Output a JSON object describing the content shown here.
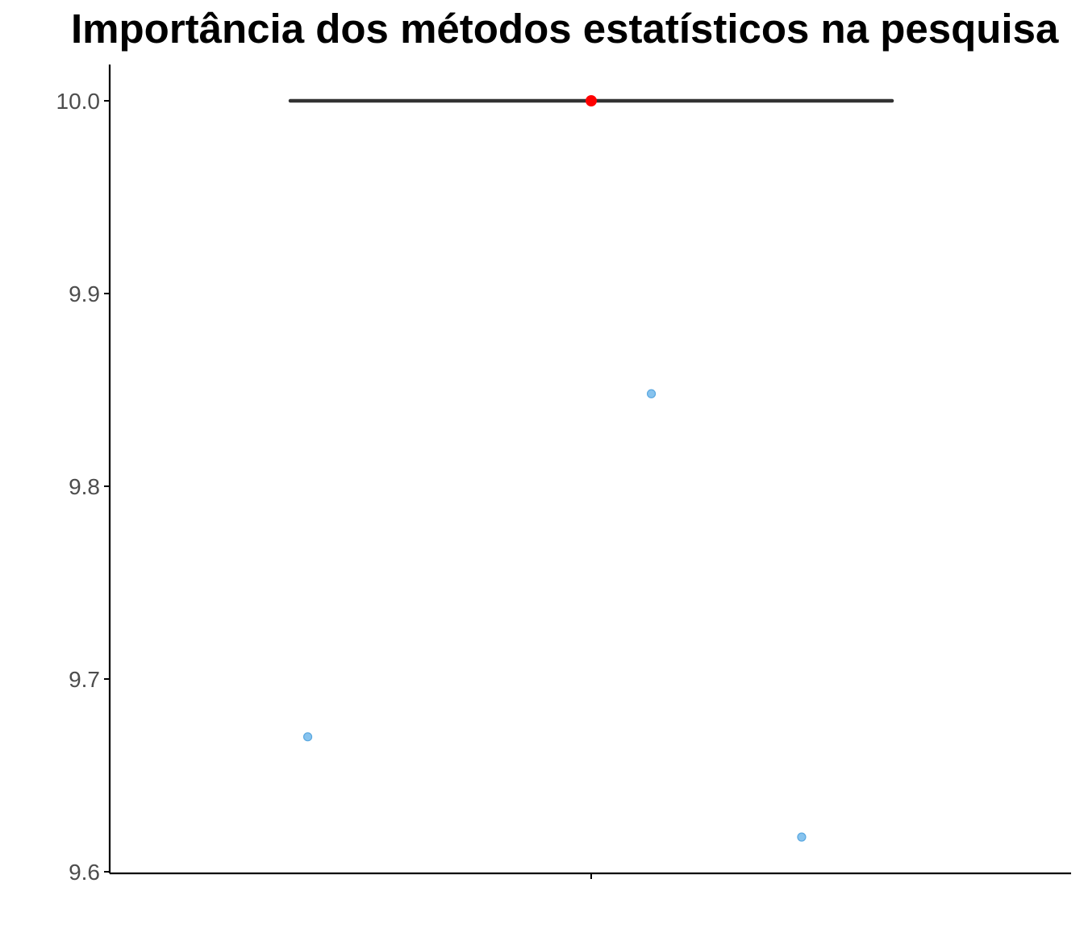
{
  "chart_data": {
    "type": "boxplot_with_jitter",
    "title": "Importância dos métodos estatísticos na pesquisa",
    "xlabel": "",
    "ylabel": "",
    "x_categories": [
      ""
    ],
    "ylim": [
      9.6,
      10.02
    ],
    "y_ticks": [
      9.6,
      9.7,
      9.8,
      9.9,
      10.0
    ],
    "y_tick_labels": [
      "9.6",
      "9.7",
      "9.8",
      "9.9",
      "10.0"
    ],
    "grid": false,
    "legend": "none",
    "box": {
      "min": 10.0,
      "q1": 10.0,
      "median": 10.0,
      "q3": 10.0,
      "max": 10.0
    },
    "mean": 10.0,
    "jitter_points": [
      {
        "x_offset": -0.33,
        "y": 9.67
      },
      {
        "x_offset": 0.07,
        "y": 9.848
      },
      {
        "x_offset": 0.245,
        "y": 9.618
      }
    ],
    "colors": {
      "box_line": "#333333",
      "mean_point": "#ff0000",
      "jitter_fill": "#87c3ee",
      "jitter_stroke": "#5aa8e0",
      "axis": "#000000"
    }
  }
}
